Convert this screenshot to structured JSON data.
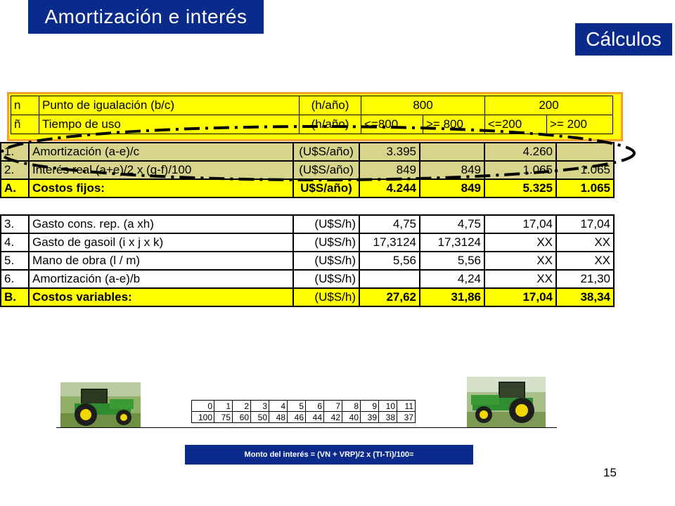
{
  "title": "Amortización e interés",
  "calc_label": "Cálculos",
  "top_rows": [
    {
      "code": "n",
      "desc": "Punto de igualación (b/c)",
      "unit": "(h/año)",
      "v1": "800",
      "v2": "200"
    },
    {
      "code": "ñ",
      "desc": "Tiempo de uso",
      "unit": "(h/año)",
      "c1": "<=800",
      "c2": ">= 800",
      "c3": "<=200",
      "c4": ">= 200"
    }
  ],
  "fixed_rows": [
    {
      "code": "1.",
      "desc": "Amortización (a-e)/c",
      "unit": "(U$S/año)",
      "c1": "3.395",
      "c2": "",
      "c3": "4.260",
      "c4": ""
    },
    {
      "code": "2.",
      "desc": "Interés real (a+e)/2 x (g-f)/100",
      "unit": "(U$S/año)",
      "c1": "849",
      "c2": "849",
      "c3": "1.065",
      "c4": "1.065"
    },
    {
      "code": "A.",
      "desc": "Costos fijos:",
      "unit": "U$S/año)",
      "c1": "4.244",
      "c2": "849",
      "c3": "5.325",
      "c4": "1.065"
    }
  ],
  "var_rows": [
    {
      "code": "3.",
      "desc": "Gasto cons. rep. (a xh)",
      "unit": "(U$S/h)",
      "c1": "4,75",
      "c2": "4,75",
      "c3": "17,04",
      "c4": "17,04"
    },
    {
      "code": "4.",
      "desc": "Gasto de gasoil (i x j x k)",
      "unit": "(U$S/h)",
      "c1": "17,3124",
      "c2": "17,3124",
      "c3": "XX",
      "c4": "XX"
    },
    {
      "code": "5.",
      "desc": "Mano de obra (l / m)",
      "unit": "(U$S/h)",
      "c1": "5,56",
      "c2": "5,56",
      "c3": "XX",
      "c4": "XX"
    },
    {
      "code": "6.",
      "desc": "Amortización (a-e)/b",
      "unit": "(U$S/h)",
      "c1": "",
      "c2": "4,24",
      "c3": "XX",
      "c4": "21,30"
    },
    {
      "code": "B.",
      "desc": "Costos variables:",
      "unit": "(U$S/h)",
      "c1": "27,62",
      "c2": "31,86",
      "c3": "17,04",
      "c4": "38,34"
    }
  ],
  "years": [
    "0",
    "1",
    "2",
    "3",
    "4",
    "5",
    "6",
    "7",
    "8",
    "9",
    "10",
    "11"
  ],
  "values": [
    "100",
    "75",
    "60",
    "50",
    "48",
    "46",
    "44",
    "42",
    "40",
    "39",
    "38",
    "37"
  ],
  "formula": "Monto del interés = (VN + VRP)/2 x (TI-Ti)/100=",
  "page_number": "15",
  "colors": {
    "title_bg": "#0a2b8c",
    "highlight": "#ffff00",
    "border_orange": "#f7a030"
  }
}
